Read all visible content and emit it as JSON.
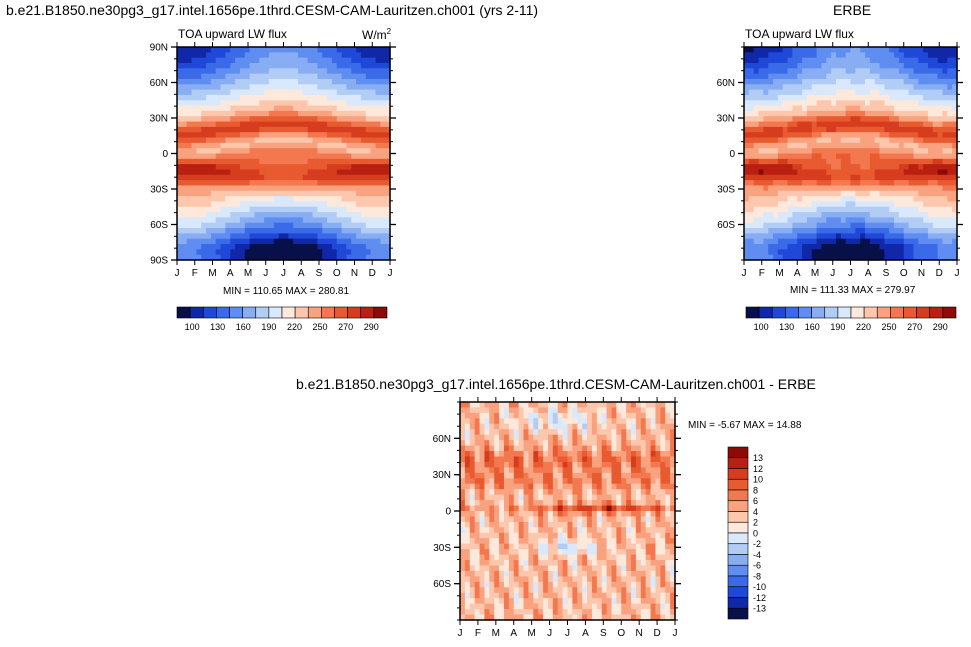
{
  "titles": {
    "main": "b.e21.B1850.ne30pg3_g17.intel.1656pe.1thrd.CESM-CAM-Lauritzen.ch001 (yrs 2-11)",
    "erbe": "ERBE",
    "diff": "b.e21.B1850.ne30pg3_g17.intel.1656pe.1thrd.CESM-CAM-Lauritzen.ch001 - ERBE"
  },
  "chart_data": [
    {
      "type": "heatmap",
      "title": "TOA upward LW flux",
      "units": "W/m",
      "units_sup": "2",
      "x": [
        "J",
        "F",
        "M",
        "A",
        "M",
        "J",
        "J",
        "A",
        "S",
        "O",
        "N",
        "D",
        "J"
      ],
      "y": [
        "90N",
        "60N",
        "30N",
        "0",
        "30S",
        "60S",
        "90S"
      ],
      "stats": "MIN = 110.65   MAX = 280.81",
      "min": 110.65,
      "max": 280.81,
      "colorbar": {
        "labels": [
          "100",
          "130",
          "160",
          "190",
          "220",
          "250",
          "270",
          "290"
        ],
        "levels": [
          100,
          115,
          130,
          145,
          160,
          175,
          190,
          205,
          220,
          235,
          250,
          260,
          270,
          280,
          290
        ]
      }
    },
    {
      "type": "heatmap",
      "title": "TOA upward LW flux",
      "x": [
        "J",
        "F",
        "M",
        "A",
        "M",
        "J",
        "J",
        "A",
        "S",
        "O",
        "N",
        "D",
        "J"
      ],
      "y": [
        "60N",
        "30N",
        "0",
        "30S",
        "60S"
      ],
      "stats": "MIN = 111.33   MAX = 279.97",
      "min": 111.33,
      "max": 279.97,
      "colorbar": {
        "labels": [
          "100",
          "130",
          "160",
          "190",
          "220",
          "250",
          "270",
          "290"
        ],
        "levels": [
          100,
          115,
          130,
          145,
          160,
          175,
          190,
          205,
          220,
          235,
          250,
          260,
          270,
          280,
          290
        ]
      }
    },
    {
      "type": "heatmap",
      "x": [
        "J",
        "F",
        "M",
        "A",
        "M",
        "J",
        "J",
        "A",
        "S",
        "O",
        "N",
        "D",
        "J"
      ],
      "y": [
        "60N",
        "30N",
        "0",
        "30S",
        "60S"
      ],
      "stats": "MIN =  -5.67  MAX =  14.88",
      "min": -5.67,
      "max": 14.88,
      "colorbar": {
        "labels": [
          "13",
          "12",
          "10",
          "8",
          "6",
          "4",
          "2",
          "0",
          "-2",
          "-4",
          "-6",
          "-8",
          "-10",
          "-12",
          "-13"
        ]
      }
    }
  ],
  "colors": {
    "cmap": [
      "#08104a",
      "#1028a8",
      "#1f48d8",
      "#3a6ae8",
      "#5f8df0",
      "#88adf3",
      "#b1cdf6",
      "#d9e8fb",
      "#fde8dc",
      "#fcc7ad",
      "#f9a27f",
      "#f3784f",
      "#e85a2f",
      "#d63d1e",
      "#b92011",
      "#8c0a07"
    ],
    "diff_cmap": [
      "#08104a",
      "#1028a8",
      "#1f48d8",
      "#3a6ae8",
      "#5f8df0",
      "#88adf3",
      "#b1cdf6",
      "#d9e8fb",
      "#fde8dc",
      "#fcc7ad",
      "#f9a27f",
      "#f3784f",
      "#e85a2f",
      "#d63d1e",
      "#b92011",
      "#8c0a07"
    ]
  }
}
